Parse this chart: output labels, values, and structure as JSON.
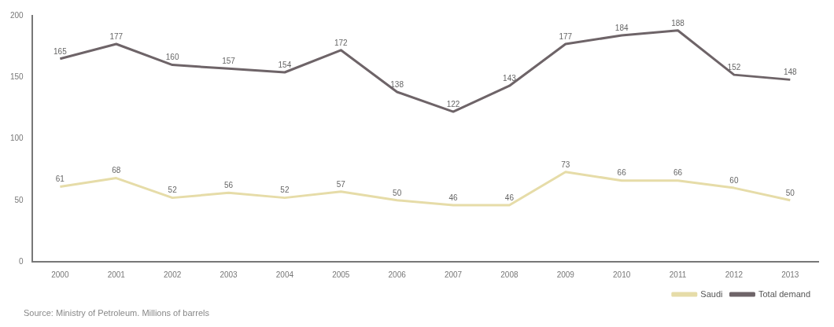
{
  "chart_data": {
    "type": "line",
    "categories": [
      "2000",
      "2001",
      "2002",
      "2003",
      "2004",
      "2005",
      "2006",
      "2007",
      "2008",
      "2009",
      "2010",
      "2011",
      "2012",
      "2013"
    ],
    "series": [
      {
        "name": "Saudi",
        "color": "#e6dca8",
        "values": [
          61,
          68,
          52,
          56,
          52,
          57,
          50,
          46,
          46,
          73,
          66,
          66,
          60,
          50
        ]
      },
      {
        "name": "Total demand",
        "color": "#6e6468",
        "values": [
          165,
          177,
          160,
          157,
          154,
          172,
          138,
          122,
          143,
          177,
          184,
          188,
          152,
          148
        ]
      }
    ],
    "ylim": [
      0,
      200
    ],
    "yticks": [
      0,
      50,
      100,
      150,
      200
    ],
    "grid": false,
    "legend": "bottom right",
    "marker": "none",
    "line_style": "solid",
    "data_labels": true,
    "annotations": [
      "Source: Ministry of Petroleum. Millions of barrels"
    ]
  }
}
